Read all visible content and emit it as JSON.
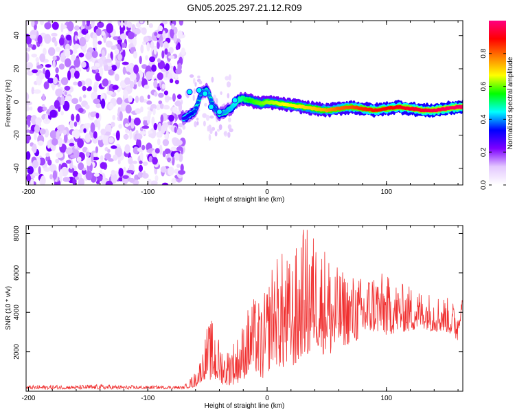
{
  "title": "GN05.2025.297.21.12.R09",
  "chart_data": [
    {
      "type": "heatmap",
      "name": "spectrogram",
      "title": "GN05.2025.297.21.12.R09",
      "xlabel": "Height of straight line (km)",
      "ylabel": "Frequency (Hz)",
      "xlim": [
        -202,
        164
      ],
      "ylim": [
        -50,
        49
      ],
      "x_ticks": [
        -200,
        -100,
        0,
        100
      ],
      "y_ticks": [
        -40,
        -20,
        0,
        20,
        40
      ],
      "noise_region": {
        "x_from": -202,
        "x_to": -70,
        "note": "broadband low-amplitude noise"
      },
      "ridge": {
        "x": [
          -70,
          -65,
          -60,
          -55,
          -50,
          -45,
          -40,
          -35,
          -30,
          -25,
          -20,
          -15,
          -10,
          -5,
          0,
          10,
          20,
          30,
          40,
          50,
          60,
          70,
          80,
          90,
          100,
          110,
          120,
          130,
          140,
          150,
          160,
          164
        ],
        "freq": [
          -10,
          -8,
          -5,
          6,
          7,
          -3,
          -7,
          -6,
          -4,
          1,
          2,
          1,
          0,
          -1,
          0,
          -1,
          -2,
          -3,
          -4,
          -5,
          -4,
          -3,
          -4,
          -5,
          -4,
          -3,
          -4,
          -5,
          -5,
          -4,
          -3,
          -3
        ],
        "amplitude": [
          0.3,
          0.32,
          0.35,
          0.38,
          0.4,
          0.35,
          0.38,
          0.4,
          0.42,
          0.45,
          0.5,
          0.55,
          0.58,
          0.6,
          0.62,
          0.65,
          0.68,
          0.7,
          0.72,
          0.75,
          0.8,
          0.82,
          0.85,
          0.87,
          0.88,
          0.9,
          0.92,
          0.93,
          0.95,
          0.96,
          0.97,
          0.97
        ]
      },
      "colorbar": {
        "label": "Normalized spectral amplitude",
        "range": [
          0,
          1
        ],
        "ticks": [
          0.0,
          0.2,
          0.4,
          0.6,
          0.8
        ],
        "tick_labels": [
          "0.0",
          "0.2",
          "0.4",
          "0.6",
          "0.8"
        ],
        "colors": [
          "#ffffff",
          "#e4c8ff",
          "#7d00ff",
          "#0000ff",
          "#00ffff",
          "#00ff00",
          "#ffff00",
          "#ff8000",
          "#ff0000",
          "#ff0080"
        ]
      }
    },
    {
      "type": "line",
      "name": "snr",
      "xlabel": "Height of straight line (km)",
      "ylabel": "SNR (10 * v/v)",
      "xlim": [
        -202,
        164
      ],
      "ylim": [
        0,
        8400
      ],
      "x_ticks": [
        -200,
        -100,
        0,
        100
      ],
      "y_ticks": [
        2000,
        4000,
        6000,
        8000
      ],
      "color": "#f03030",
      "series": [
        {
          "name": "SNR envelope",
          "x": [
            -202,
            -180,
            -160,
            -140,
            -120,
            -100,
            -80,
            -70,
            -60,
            -55,
            -50,
            -45,
            -40,
            -35,
            -30,
            -25,
            -20,
            -15,
            -10,
            -5,
            0,
            5,
            10,
            15,
            20,
            25,
            30,
            35,
            40,
            45,
            50,
            55,
            60,
            70,
            80,
            90,
            100,
            110,
            120,
            130,
            140,
            150,
            155,
            160,
            164
          ],
          "y_min": [
            100,
            100,
            120,
            100,
            110,
            120,
            120,
            130,
            200,
            500,
            700,
            400,
            400,
            300,
            300,
            400,
            600,
            800,
            1000,
            500,
            800,
            1500,
            1200,
            1000,
            1400,
            1000,
            2000,
            1500,
            2500,
            1800,
            2000,
            1600,
            2200,
            2400,
            2600,
            3000,
            2800,
            3000,
            3000,
            3200,
            3000,
            3000,
            2800,
            2500,
            4600
          ],
          "y_max": [
            300,
            320,
            300,
            350,
            300,
            280,
            300,
            250,
            1000,
            1800,
            3400,
            3700,
            2600,
            2000,
            2500,
            2800,
            3500,
            4500,
            4800,
            4500,
            5400,
            6800,
            7000,
            7200,
            6500,
            7500,
            8300,
            8400,
            8000,
            7600,
            7400,
            6700,
            6200,
            6000,
            5800,
            6200,
            5900,
            5500,
            5400,
            5100,
            5000,
            4800,
            4600,
            4400,
            5600
          ]
        }
      ]
    }
  ]
}
